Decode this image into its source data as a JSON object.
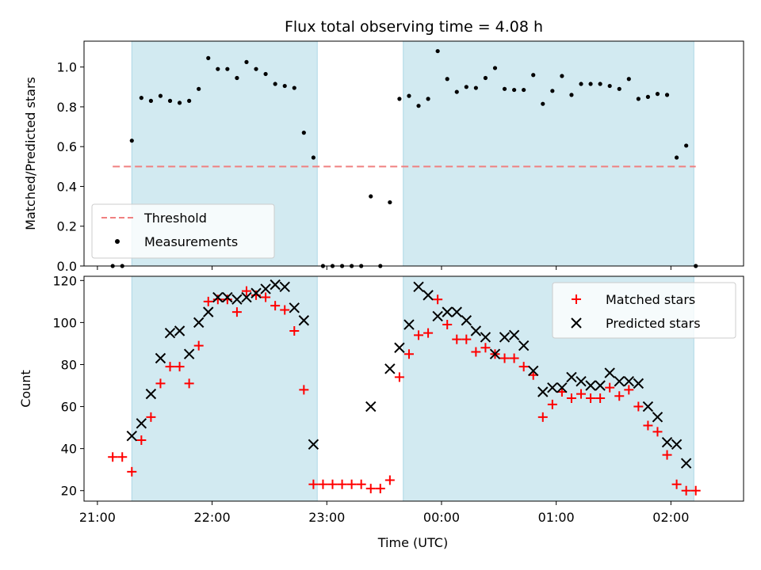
{
  "title": "Flux total observing time = 4.08 h",
  "colors": {
    "shade": "#add8e6",
    "threshold": "#f08080",
    "matched": "#ff0000",
    "predicted": "#000000",
    "measurement": "#000000"
  },
  "chart_data": [
    {
      "type": "scatter",
      "panel": "top",
      "ylabel": "Matched/Predicted stars",
      "xlim": [
        "20:53",
        "02:38"
      ],
      "ylim": [
        0,
        1.13
      ],
      "yticks": [
        0.0,
        0.2,
        0.4,
        0.6,
        0.8,
        1.0
      ],
      "ytick_labels": [
        "0.0",
        "0.2",
        "0.4",
        "0.6",
        "0.8",
        "1.0"
      ],
      "legend_position": "lower-left",
      "shaded_intervals": [
        [
          "21:18",
          "22:55"
        ],
        [
          "23:40",
          "02:12"
        ]
      ],
      "threshold": {
        "name": "Threshold",
        "value": 0.5,
        "x_range": [
          "21:08",
          "02:13"
        ]
      },
      "series": [
        {
          "name": "Measurements",
          "marker": "dot",
          "x": [
            "21:08",
            "21:13",
            "21:18",
            "21:23",
            "21:28",
            "21:33",
            "21:38",
            "21:43",
            "21:48",
            "21:53",
            "21:58",
            "22:03",
            "22:08",
            "22:13",
            "22:18",
            "22:23",
            "22:28",
            "22:33",
            "22:38",
            "22:43",
            "22:48",
            "22:53",
            "22:58",
            "23:03",
            "23:08",
            "23:13",
            "23:18",
            "23:23",
            "23:28",
            "23:33",
            "23:38",
            "23:43",
            "23:48",
            "23:53",
            "23:58",
            "00:03",
            "00:08",
            "00:13",
            "00:18",
            "00:23",
            "00:28",
            "00:33",
            "00:38",
            "00:43",
            "00:48",
            "00:53",
            "00:58",
            "01:03",
            "01:08",
            "01:13",
            "01:18",
            "01:23",
            "01:28",
            "01:33",
            "01:38",
            "01:43",
            "01:48",
            "01:53",
            "01:58",
            "02:03",
            "02:08",
            "02:13"
          ],
          "y": [
            0.0,
            0.0,
            0.63,
            0.845,
            0.83,
            0.855,
            0.83,
            0.82,
            0.83,
            0.89,
            1.045,
            0.99,
            0.99,
            0.945,
            1.025,
            0.99,
            0.965,
            0.915,
            0.905,
            0.895,
            0.67,
            0.545,
            0.0,
            0.0,
            0.0,
            0.0,
            0.0,
            0.35,
            0.0,
            0.32,
            0.84,
            0.855,
            0.805,
            0.84,
            1.08,
            0.94,
            0.875,
            0.9,
            0.895,
            0.945,
            0.995,
            0.89,
            0.885,
            0.885,
            0.96,
            0.815,
            0.88,
            0.955,
            0.86,
            0.915,
            0.915,
            0.915,
            0.905,
            0.89,
            0.94,
            0.84,
            0.85,
            0.865,
            0.86,
            0.545,
            0.605,
            0.0
          ]
        }
      ]
    },
    {
      "type": "scatter",
      "panel": "bottom",
      "xlabel": "Time (UTC)",
      "ylabel": "Count",
      "xlim": [
        "20:53",
        "02:38"
      ],
      "ylim": [
        15,
        122
      ],
      "xticks": [
        "21:00",
        "22:00",
        "23:00",
        "00:00",
        "01:00",
        "02:00"
      ],
      "yticks": [
        20,
        40,
        60,
        80,
        100,
        120
      ],
      "ytick_labels": [
        "20",
        "40",
        "60",
        "80",
        "100",
        "120"
      ],
      "legend_position": "upper-right",
      "shaded_intervals": [
        [
          "21:18",
          "22:55"
        ],
        [
          "23:40",
          "02:12"
        ]
      ],
      "series": [
        {
          "name": "Matched stars",
          "marker": "plus",
          "x": [
            "21:08",
            "21:13",
            "21:18",
            "21:23",
            "21:28",
            "21:33",
            "21:38",
            "21:43",
            "21:48",
            "21:53",
            "21:58",
            "22:03",
            "22:08",
            "22:13",
            "22:18",
            "22:23",
            "22:28",
            "22:33",
            "22:38",
            "22:43",
            "22:48",
            "22:53",
            "22:58",
            "23:03",
            "23:08",
            "23:13",
            "23:18",
            "23:23",
            "23:28",
            "23:33",
            "23:38",
            "23:43",
            "23:48",
            "23:53",
            "23:58",
            "00:03",
            "00:08",
            "00:13",
            "00:18",
            "00:23",
            "00:28",
            "00:33",
            "00:38",
            "00:43",
            "00:48",
            "00:53",
            "00:58",
            "01:03",
            "01:08",
            "01:13",
            "01:18",
            "01:23",
            "01:28",
            "01:33",
            "01:38",
            "01:43",
            "01:48",
            "01:53",
            "01:58",
            "02:03",
            "02:08",
            "02:13"
          ],
          "y": [
            36,
            36,
            29,
            44,
            55,
            71,
            79,
            79,
            71,
            89,
            110,
            111,
            111,
            105,
            115,
            113,
            112,
            108,
            106,
            96,
            68,
            23,
            23,
            23,
            23,
            23,
            23,
            21,
            21,
            25,
            74,
            85,
            94,
            95,
            111,
            99,
            92,
            92,
            86,
            88,
            85,
            83,
            83,
            79,
            75,
            55,
            61,
            67,
            64,
            66,
            64,
            64,
            69,
            65,
            68,
            60,
            51,
            48,
            37,
            23,
            20,
            20
          ]
        },
        {
          "name": "Predicted stars",
          "marker": "x",
          "x": [
            "21:18",
            "21:23",
            "21:28",
            "21:33",
            "21:38",
            "21:43",
            "21:48",
            "21:53",
            "21:58",
            "22:03",
            "22:08",
            "22:13",
            "22:18",
            "22:23",
            "22:28",
            "22:33",
            "22:38",
            "22:43",
            "22:48",
            "22:53",
            "23:23",
            "23:33",
            "23:38",
            "23:43",
            "23:48",
            "23:53",
            "23:58",
            "00:03",
            "00:08",
            "00:13",
            "00:18",
            "00:23",
            "00:28",
            "00:33",
            "00:38",
            "00:43",
            "00:48",
            "00:53",
            "00:58",
            "01:03",
            "01:08",
            "01:13",
            "01:18",
            "01:23",
            "01:28",
            "01:33",
            "01:38",
            "01:43",
            "01:48",
            "01:53",
            "01:58",
            "02:03",
            "02:08"
          ],
          "y": [
            46,
            52,
            66,
            83,
            95,
            96,
            85,
            100,
            105,
            112,
            112,
            111,
            112,
            114,
            116,
            118,
            117,
            107,
            101,
            42,
            60,
            78,
            88,
            99,
            117,
            113,
            103,
            105,
            105,
            101,
            96,
            93,
            85,
            93,
            94,
            89,
            77,
            67,
            69,
            69,
            74,
            72,
            70,
            70,
            76,
            72,
            72,
            71,
            60,
            55,
            43,
            42,
            33
          ]
        }
      ]
    }
  ]
}
